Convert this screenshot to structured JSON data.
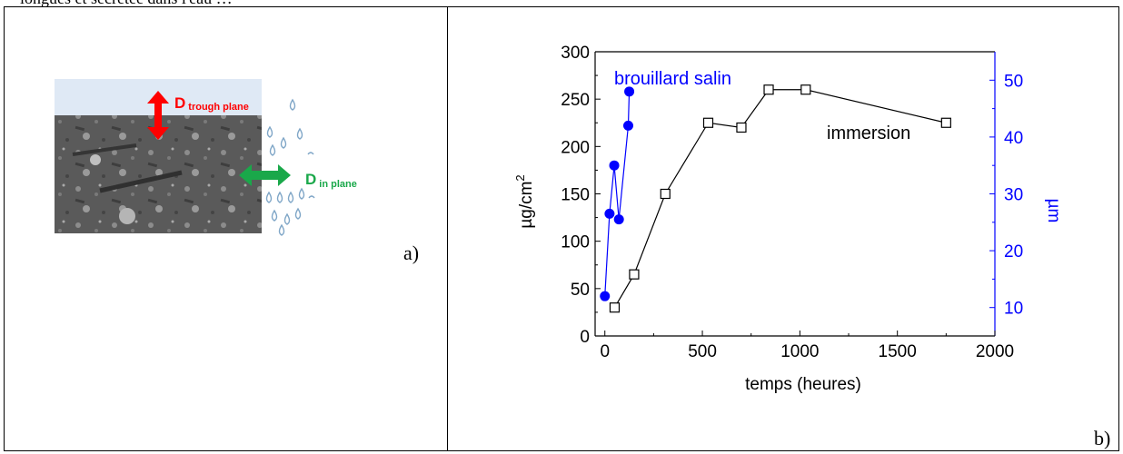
{
  "header": {
    "cut_text": "longues et sécrétée dans l'eau …"
  },
  "panel_a": {
    "label": "a)",
    "arrow_red": {
      "main": "D",
      "sub": "trough plane",
      "color": "#ff0000"
    },
    "arrow_green": {
      "main": "D",
      "sub": "in plane",
      "color": "#1aa84a"
    }
  },
  "panel_b": {
    "label": "b)"
  },
  "chart_data": {
    "type": "line",
    "xlabel": "temps (heures)",
    "ylabel": "µg/cm²",
    "y2label": "µm",
    "xlim": [
      -50,
      2000
    ],
    "ylim": [
      0,
      300
    ],
    "y2lim": [
      5,
      55
    ],
    "x_ticks": [
      "0",
      "500",
      "1000",
      "1500",
      "2000"
    ],
    "y_ticks": [
      "0",
      "50",
      "100",
      "150",
      "200",
      "250",
      "300"
    ],
    "y2_ticks": [
      "10",
      "20",
      "30",
      "40",
      "50"
    ],
    "series": [
      {
        "name": "immersion",
        "axis": "left",
        "marker": "open-square",
        "color": "#000000",
        "x": [
          50,
          150,
          310,
          530,
          700,
          840,
          1030,
          1750
        ],
        "y": [
          30,
          65,
          150,
          225,
          220,
          260,
          260,
          225
        ]
      },
      {
        "name": "brouillard salin",
        "axis": "right",
        "marker": "filled-circle",
        "color": "#0000ff",
        "x": [
          0,
          24,
          48,
          72,
          120,
          125
        ],
        "y": [
          12,
          26.5,
          35,
          25.5,
          42,
          48
        ]
      }
    ]
  }
}
